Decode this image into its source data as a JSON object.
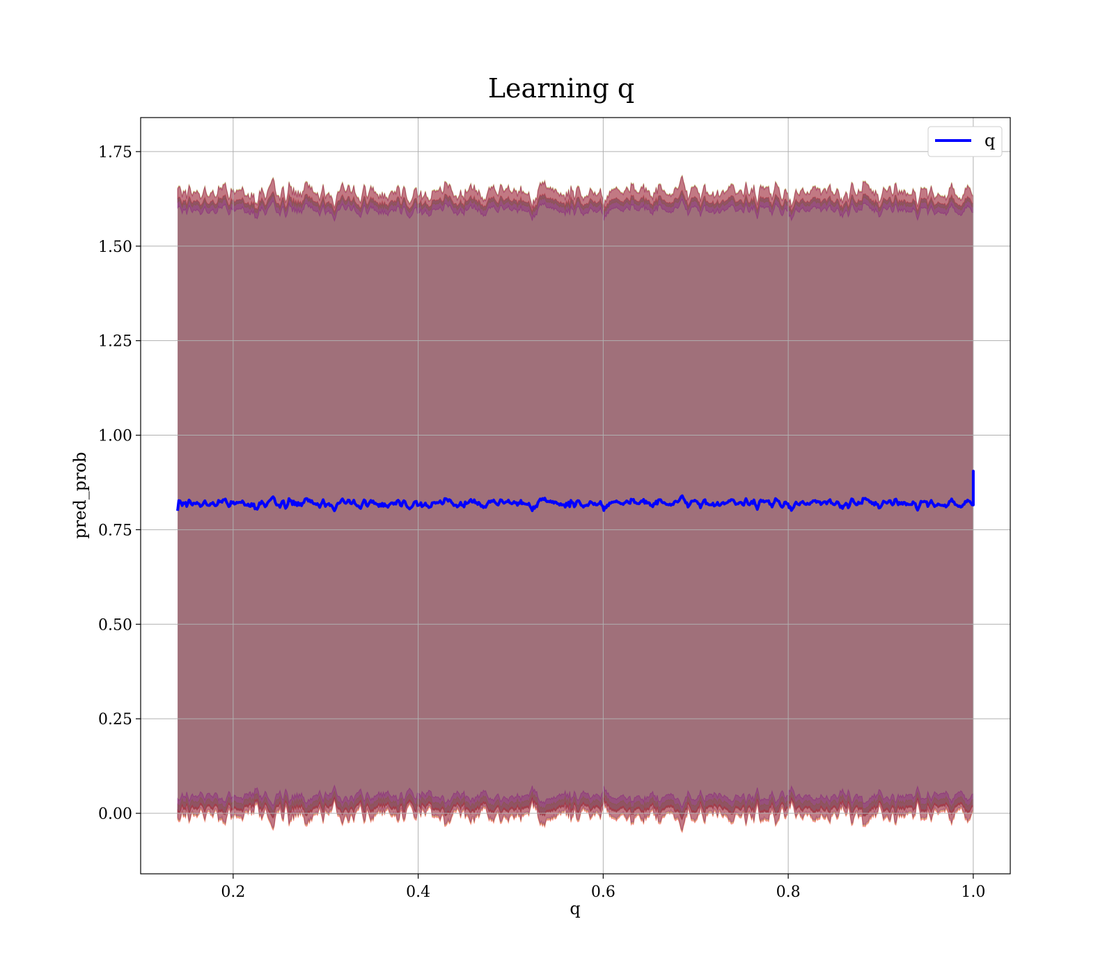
{
  "chart_data": {
    "type": "line",
    "title": "Learning q",
    "xlabel": "q",
    "ylabel": "pred_prob",
    "xlim": [
      0.1,
      1.04
    ],
    "ylim": [
      -0.16,
      1.84
    ],
    "x_ticks": [
      "0.2",
      "0.4",
      "0.6",
      "0.8",
      "1.0"
    ],
    "y_ticks": [
      "0.00",
      "0.25",
      "0.50",
      "0.75",
      "1.00",
      "1.25",
      "1.50",
      "1.75"
    ],
    "grid": true,
    "legend": {
      "position": "upper-right",
      "entries": [
        {
          "label": "q",
          "color": "#0000ff"
        }
      ]
    },
    "series": [
      {
        "name": "q",
        "color": "#0000ff",
        "x_range": [
          0.14,
          1.0
        ],
        "mean": 0.82,
        "noise": 0.015,
        "end_spike": 0.905
      }
    ],
    "bands": [
      {
        "color": "#ff0000",
        "lower_mean": -0.02,
        "upper_mean": 1.655
      },
      {
        "color": "#808000",
        "lower_mean": -0.005,
        "upper_mean": 1.645
      },
      {
        "color": "#800080",
        "lower_mean": 0.01,
        "upper_mean": 1.63
      }
    ],
    "fill_color": "#a0707a"
  }
}
